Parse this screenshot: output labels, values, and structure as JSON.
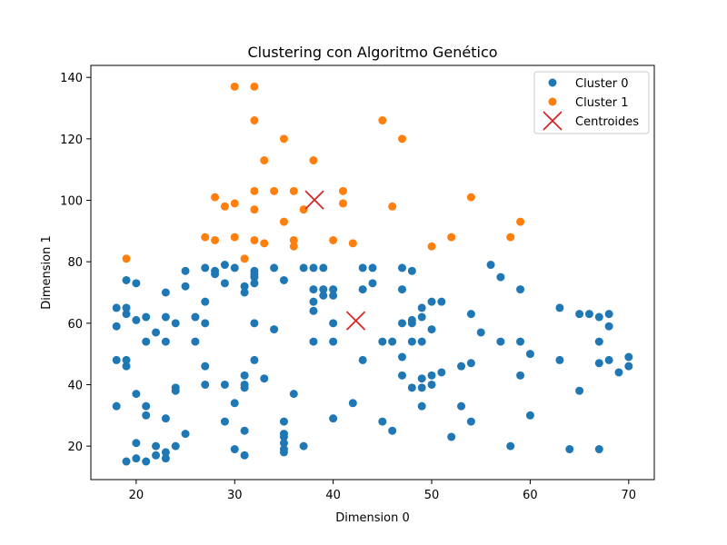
{
  "chart_data": {
    "type": "scatter",
    "title": "Clustering con Algoritmo Genético",
    "xlabel": "Dimension 0",
    "ylabel": "Dimension 1",
    "xlim": [
      15.4,
      72.6
    ],
    "ylim": [
      9.1,
      143.9
    ],
    "xticks": [
      20,
      30,
      40,
      50,
      60,
      70
    ],
    "yticks": [
      20,
      40,
      60,
      80,
      100,
      120,
      140
    ],
    "grid": false,
    "legend_position": "top-right",
    "series": [
      {
        "name": "Cluster 0",
        "color": "#1f77b4",
        "marker": "circle",
        "points": [
          [
            18,
            65
          ],
          [
            18,
            59
          ],
          [
            18,
            48
          ],
          [
            18,
            33
          ],
          [
            19,
            74
          ],
          [
            19,
            65
          ],
          [
            19,
            63
          ],
          [
            19,
            48
          ],
          [
            19,
            46
          ],
          [
            19,
            15
          ],
          [
            20,
            73
          ],
          [
            20,
            61
          ],
          [
            20,
            37
          ],
          [
            20,
            21
          ],
          [
            20,
            16
          ],
          [
            21,
            62
          ],
          [
            21,
            54
          ],
          [
            21,
            33
          ],
          [
            21,
            30
          ],
          [
            21,
            15
          ],
          [
            22,
            57
          ],
          [
            22,
            20
          ],
          [
            22,
            17
          ],
          [
            23,
            70
          ],
          [
            23,
            62
          ],
          [
            23,
            54
          ],
          [
            23,
            29
          ],
          [
            23,
            18
          ],
          [
            23,
            16
          ],
          [
            24,
            60
          ],
          [
            24,
            39
          ],
          [
            24,
            38
          ],
          [
            24,
            20
          ],
          [
            25,
            77
          ],
          [
            25,
            72
          ],
          [
            25,
            24
          ],
          [
            26,
            62
          ],
          [
            26,
            54
          ],
          [
            27,
            78
          ],
          [
            27,
            67
          ],
          [
            27,
            60
          ],
          [
            27,
            46
          ],
          [
            27,
            40
          ],
          [
            28,
            77
          ],
          [
            28,
            76
          ],
          [
            29,
            79
          ],
          [
            29,
            73
          ],
          [
            29,
            40
          ],
          [
            29,
            28
          ],
          [
            30,
            78
          ],
          [
            30,
            34
          ],
          [
            30,
            19
          ],
          [
            31,
            72
          ],
          [
            31,
            70
          ],
          [
            31,
            43
          ],
          [
            31,
            40
          ],
          [
            31,
            39
          ],
          [
            31,
            25
          ],
          [
            31,
            17
          ],
          [
            32,
            77
          ],
          [
            32,
            76
          ],
          [
            32,
            75
          ],
          [
            32,
            73
          ],
          [
            32,
            60
          ],
          [
            32,
            48
          ],
          [
            33,
            42
          ],
          [
            34,
            78
          ],
          [
            34,
            58
          ],
          [
            35,
            74
          ],
          [
            35,
            28
          ],
          [
            35,
            24
          ],
          [
            35,
            23
          ],
          [
            35,
            21
          ],
          [
            35,
            19
          ],
          [
            35,
            18
          ],
          [
            36,
            37
          ],
          [
            37,
            78
          ],
          [
            37,
            20
          ],
          [
            38,
            78
          ],
          [
            38,
            71
          ],
          [
            38,
            67
          ],
          [
            38,
            64
          ],
          [
            38,
            54
          ],
          [
            39,
            78
          ],
          [
            39,
            71
          ],
          [
            39,
            69
          ],
          [
            40,
            71
          ],
          [
            40,
            69
          ],
          [
            40,
            60
          ],
          [
            40,
            54
          ],
          [
            40,
            29
          ],
          [
            42,
            34
          ],
          [
            43,
            78
          ],
          [
            43,
            71
          ],
          [
            43,
            48
          ],
          [
            44,
            78
          ],
          [
            44,
            73
          ],
          [
            45,
            54
          ],
          [
            45,
            28
          ],
          [
            46,
            54
          ],
          [
            46,
            25
          ],
          [
            47,
            78
          ],
          [
            47,
            71
          ],
          [
            47,
            60
          ],
          [
            47,
            49
          ],
          [
            47,
            43
          ],
          [
            48,
            77
          ],
          [
            48,
            61
          ],
          [
            48,
            60
          ],
          [
            48,
            54
          ],
          [
            48,
            39
          ],
          [
            49,
            65
          ],
          [
            49,
            62
          ],
          [
            49,
            54
          ],
          [
            49,
            42
          ],
          [
            49,
            39
          ],
          [
            49,
            33
          ],
          [
            50,
            67
          ],
          [
            50,
            58
          ],
          [
            50,
            43
          ],
          [
            50,
            40
          ],
          [
            51,
            67
          ],
          [
            51,
            44
          ],
          [
            52,
            23
          ],
          [
            53,
            46
          ],
          [
            53,
            33
          ],
          [
            54,
            63
          ],
          [
            54,
            47
          ],
          [
            54,
            28
          ],
          [
            55,
            57
          ],
          [
            56,
            79
          ],
          [
            57,
            75
          ],
          [
            57,
            54
          ],
          [
            58,
            20
          ],
          [
            59,
            71
          ],
          [
            59,
            54
          ],
          [
            59,
            43
          ],
          [
            60,
            50
          ],
          [
            60,
            30
          ],
          [
            63,
            65
          ],
          [
            63,
            48
          ],
          [
            64,
            19
          ],
          [
            65,
            63
          ],
          [
            65,
            38
          ],
          [
            66,
            63
          ],
          [
            67,
            62
          ],
          [
            67,
            54
          ],
          [
            67,
            47
          ],
          [
            67,
            19
          ],
          [
            68,
            63
          ],
          [
            68,
            59
          ],
          [
            68,
            48
          ],
          [
            69,
            44
          ],
          [
            70,
            49
          ],
          [
            70,
            46
          ]
        ]
      },
      {
        "name": "Cluster 1",
        "color": "#ff7f0e",
        "marker": "circle",
        "points": [
          [
            19,
            81
          ],
          [
            27,
            88
          ],
          [
            28,
            101
          ],
          [
            28,
            87
          ],
          [
            29,
            98
          ],
          [
            30,
            137
          ],
          [
            30,
            99
          ],
          [
            30,
            88
          ],
          [
            31,
            81
          ],
          [
            32,
            137
          ],
          [
            32,
            126
          ],
          [
            32,
            103
          ],
          [
            32,
            97
          ],
          [
            32,
            87
          ],
          [
            33,
            113
          ],
          [
            33,
            86
          ],
          [
            34,
            103
          ],
          [
            35,
            120
          ],
          [
            35,
            93
          ],
          [
            36,
            103
          ],
          [
            36,
            87
          ],
          [
            36,
            85
          ],
          [
            37,
            97
          ],
          [
            38,
            113
          ],
          [
            40,
            87
          ],
          [
            41,
            103
          ],
          [
            41,
            99
          ],
          [
            42,
            86
          ],
          [
            45,
            126
          ],
          [
            46,
            98
          ],
          [
            47,
            120
          ],
          [
            50,
            85
          ],
          [
            52,
            88
          ],
          [
            54,
            101
          ],
          [
            58,
            88
          ],
          [
            59,
            93
          ]
        ]
      },
      {
        "name": "Centroides",
        "color": "#d62728",
        "marker": "x",
        "points": [
          [
            38.1,
            100.1
          ],
          [
            42.3,
            60.8
          ]
        ]
      }
    ]
  }
}
